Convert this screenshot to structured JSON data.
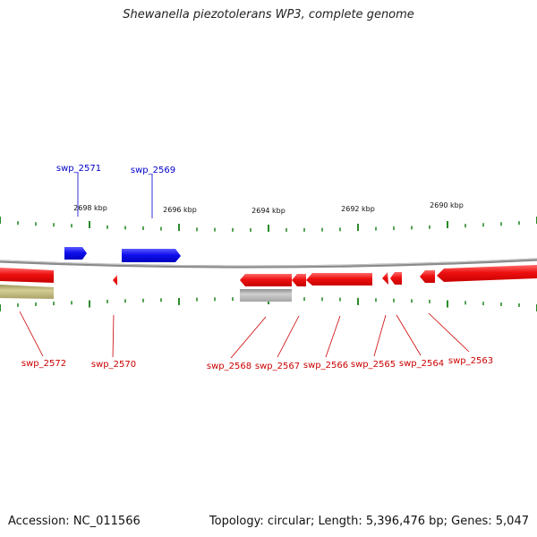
{
  "title": "Shewanella piezotolerans WP3, complete genome",
  "footer": {
    "accession": "Accession: NC_011566",
    "summary": "Topology: circular; Length: 5,396,476 bp; Genes: 5,047"
  },
  "colors": {
    "forward_gene": "#1010ee",
    "reverse_gene": "#ee1010",
    "forward_label": "#0000cc",
    "reverse_label": "#cc0000",
    "tick": "#2a8a2a",
    "backbone": "#888888",
    "rna_feature": "#b5ad6a",
    "other_feature": "#b8b8b8"
  },
  "scale_labels": [
    "2698 kbp",
    "2696 kbp",
    "2694 kbp",
    "2692 kbp",
    "2690 kbp"
  ],
  "genes": [
    {
      "id": "swp_2571",
      "strand": "forward"
    },
    {
      "id": "swp_2569",
      "strand": "forward"
    },
    {
      "id": "swp_2572",
      "strand": "reverse"
    },
    {
      "id": "swp_2570",
      "strand": "reverse"
    },
    {
      "id": "swp_2568",
      "strand": "reverse"
    },
    {
      "id": "swp_2567",
      "strand": "reverse"
    },
    {
      "id": "swp_2566",
      "strand": "reverse"
    },
    {
      "id": "swp_2565",
      "strand": "reverse"
    },
    {
      "id": "swp_2564",
      "strand": "reverse"
    },
    {
      "id": "swp_2563",
      "strand": "reverse"
    }
  ]
}
